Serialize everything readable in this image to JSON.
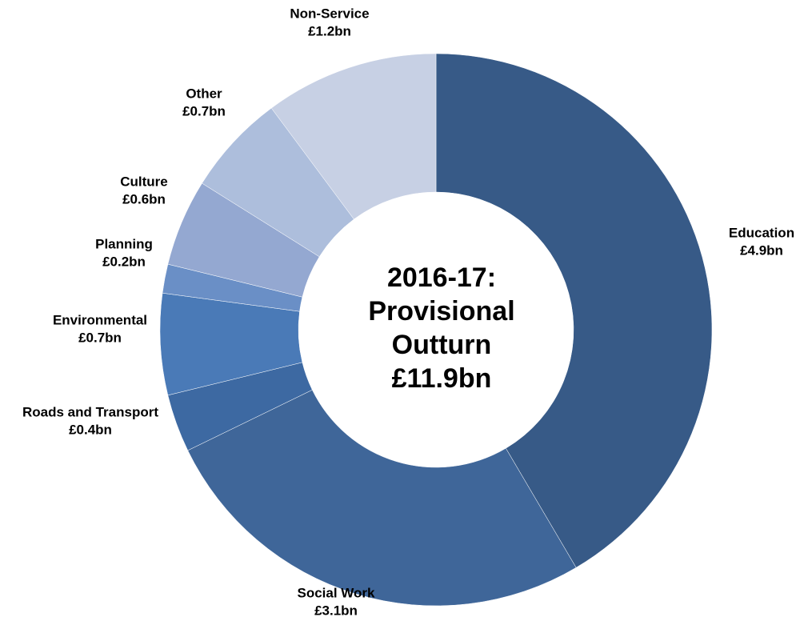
{
  "chart_data": {
    "type": "donut",
    "categories": [
      "Education",
      "Social Work",
      "Roads and Transport",
      "Environmental",
      "Planning",
      "Culture",
      "Other",
      "Non-Service"
    ],
    "values": [
      4.9,
      3.1,
      0.4,
      0.7,
      0.2,
      0.6,
      0.7,
      1.2
    ],
    "value_labels": [
      "£4.9bn",
      "£3.1bn",
      "£0.4bn",
      "£0.7bn",
      "£0.2bn",
      "£0.6bn",
      "£0.7bn",
      "£1.2bn"
    ],
    "colors": [
      "#375a87",
      "#3f6699",
      "#3d69a2",
      "#4a7ab7",
      "#6a8fc6",
      "#94a8d1",
      "#adbedc",
      "#c7d0e4"
    ],
    "center_label": [
      "2016-17:",
      "Provisional",
      "Outturn",
      "£11.9bn"
    ]
  }
}
